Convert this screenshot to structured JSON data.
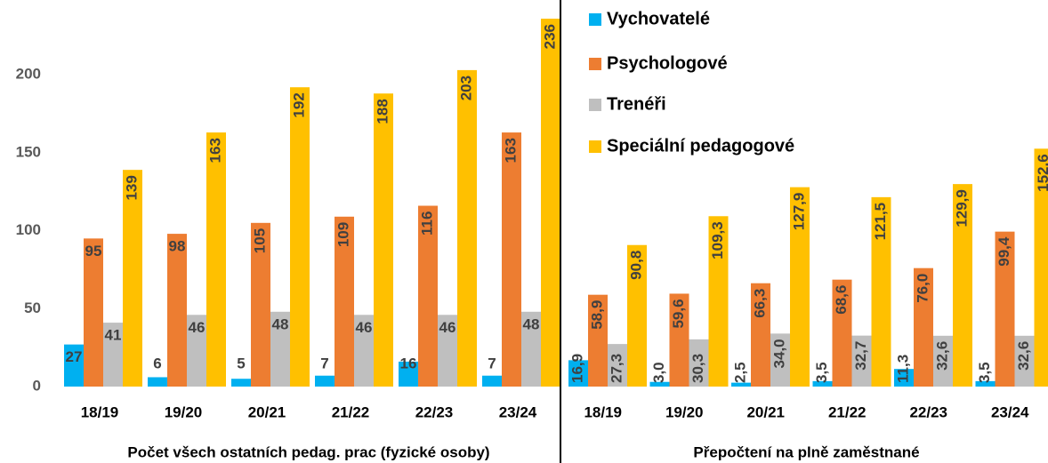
{
  "chart_data": {
    "type": "bar",
    "groups": [
      {
        "label": "Počet všech ostatních pedag. prac (fyzické osoby)",
        "categories": [
          "18/19",
          "19/20",
          "20/21",
          "21/22",
          "22/23",
          "23/24"
        ]
      },
      {
        "label": "Přepočtení na plně zaměstnané",
        "categories": [
          "18/19",
          "19/20",
          "20/21",
          "21/22",
          "22/23",
          "23/24"
        ]
      }
    ],
    "series": [
      {
        "name": "Vychovatelé",
        "color": "#00b0f0",
        "values": [
          27,
          6,
          5,
          7,
          16,
          7,
          16.9,
          3.0,
          2.5,
          3.5,
          11.3,
          3.5
        ],
        "value_labels": [
          "27",
          "6",
          "5",
          "7",
          "16",
          "7",
          "16,9",
          "3,0",
          "2,5",
          "3,5",
          "11,3",
          "3,5"
        ]
      },
      {
        "name": "Psychologové",
        "color": "#ed7d31",
        "values": [
          95,
          98,
          105,
          109,
          116,
          163,
          58.9,
          59.6,
          66.3,
          68.6,
          76.0,
          99.4
        ],
        "value_labels": [
          "95",
          "98",
          "105",
          "109",
          "116",
          "163",
          "58,9",
          "59,6",
          "66,3",
          "68,6",
          "76,0",
          "99,4"
        ]
      },
      {
        "name": "Trenéři",
        "color": "#bfbfbf",
        "values": [
          41,
          46,
          48,
          46,
          46,
          48,
          27.3,
          30.3,
          34.0,
          32.7,
          32.6,
          32.6
        ],
        "value_labels": [
          "41",
          "46",
          "48",
          "46",
          "46",
          "48",
          "27,3",
          "30,3",
          "34,0",
          "32,7",
          "32,6",
          "32,6"
        ]
      },
      {
        "name": "Speciální pedagogové",
        "color": "#ffc000",
        "values": [
          139,
          163,
          192,
          188,
          203,
          236,
          90.8,
          109.3,
          127.9,
          121.5,
          129.9,
          152.6
        ],
        "value_labels": [
          "139",
          "163",
          "192",
          "188",
          "203",
          "236",
          "90,8",
          "109,3",
          "127,9",
          "121,5",
          "129,9",
          "152,6"
        ]
      }
    ],
    "ylim": [
      0,
      240
    ],
    "yticks": [
      0,
      50,
      100,
      150,
      200
    ],
    "grid": false,
    "legend": "top"
  }
}
